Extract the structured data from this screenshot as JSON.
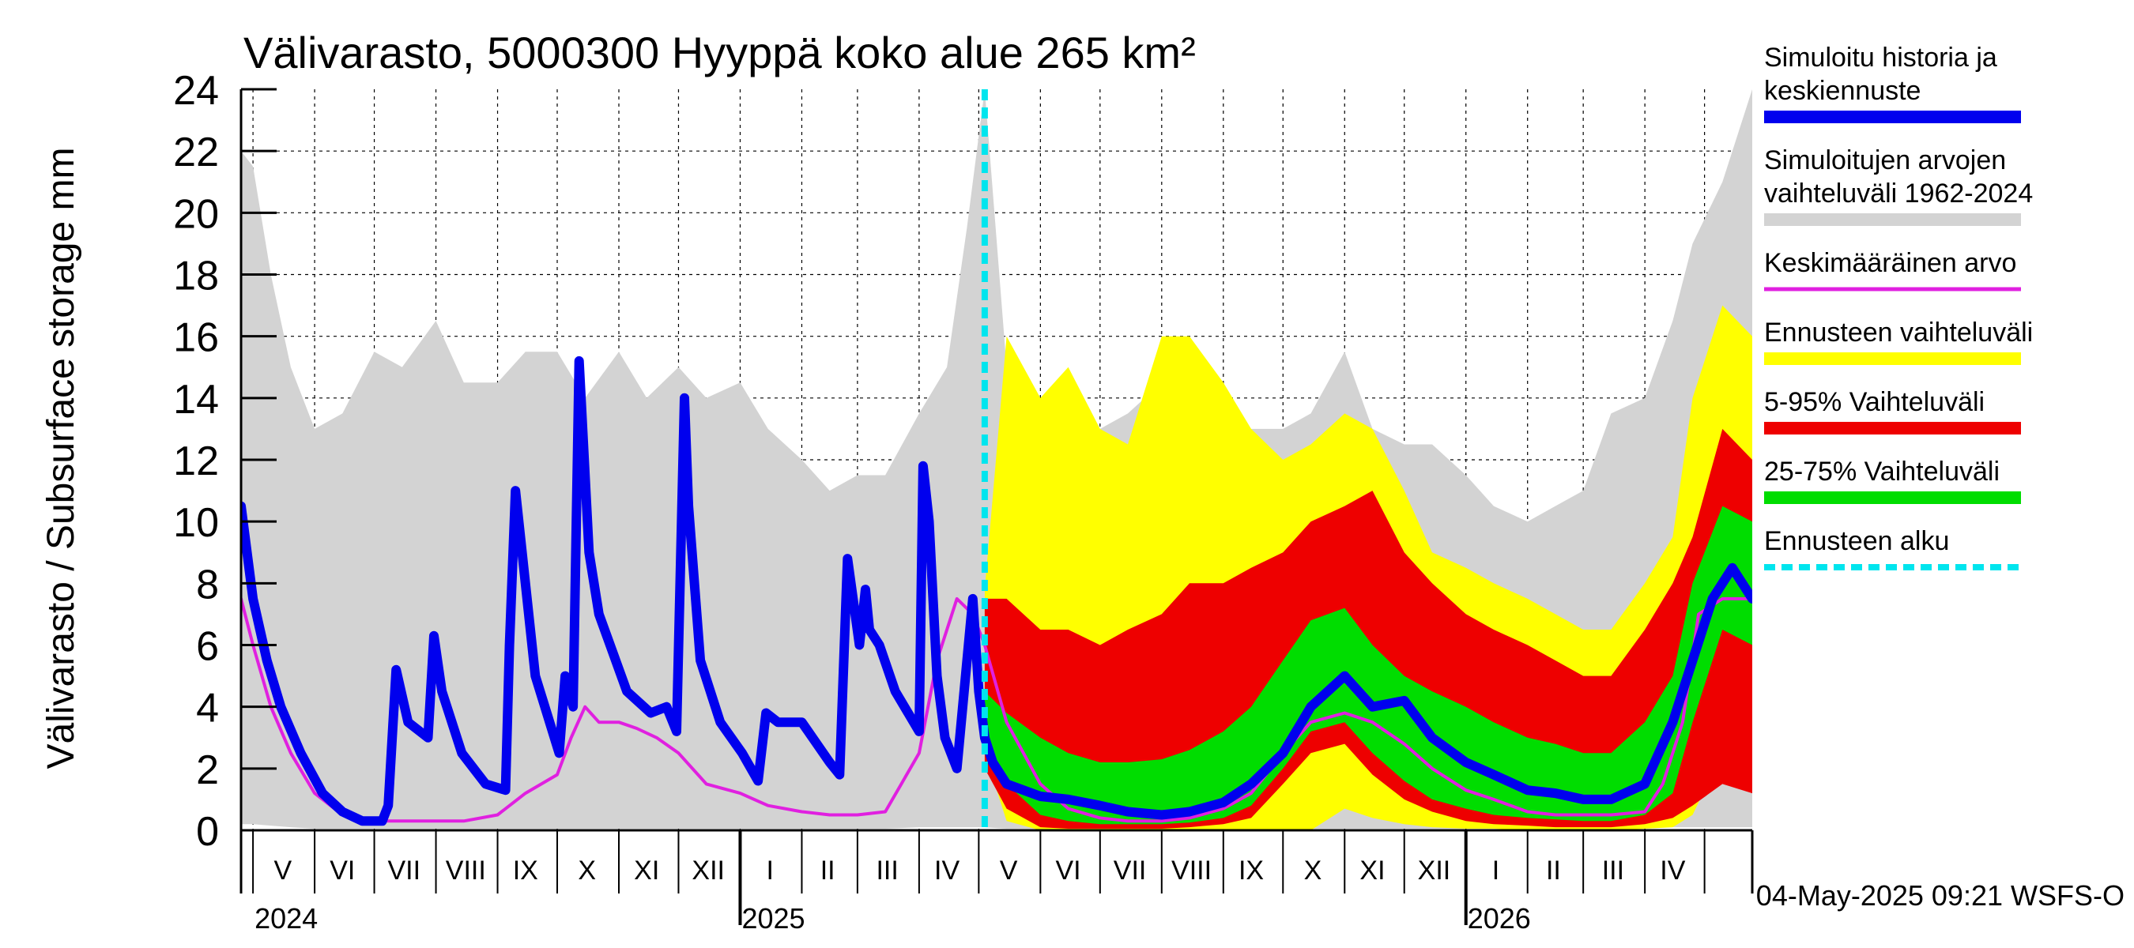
{
  "chart_data": {
    "type": "area",
    "title": "Välivarasto, 5000300 Hyyppä koko alue 265 km²",
    "ylabel": "Välivarasto / Subsurface storage  mm",
    "ylim": [
      0,
      24
    ],
    "yticks": [
      0,
      2,
      4,
      6,
      8,
      10,
      12,
      14,
      16,
      18,
      20,
      22,
      24
    ],
    "xlim": [
      "2024-04-25",
      "2026-05-25"
    ],
    "forecast_start": "2025-05-04",
    "month_labels": [
      {
        "label": "V",
        "center": "2024-05-16"
      },
      {
        "label": "VI",
        "center": "2024-06-15"
      },
      {
        "label": "VII",
        "center": "2024-07-16"
      },
      {
        "label": "VIII",
        "center": "2024-08-16"
      },
      {
        "label": "IX",
        "center": "2024-09-15"
      },
      {
        "label": "X",
        "center": "2024-10-16"
      },
      {
        "label": "XI",
        "center": "2024-11-15"
      },
      {
        "label": "XII",
        "center": "2024-12-16"
      },
      {
        "label": "I",
        "center": "2025-01-16"
      },
      {
        "label": "II",
        "center": "2025-02-14"
      },
      {
        "label": "III",
        "center": "2025-03-16"
      },
      {
        "label": "IV",
        "center": "2025-04-15"
      },
      {
        "label": "V",
        "center": "2025-05-16"
      },
      {
        "label": "VI",
        "center": "2025-06-15"
      },
      {
        "label": "VII",
        "center": "2025-07-16"
      },
      {
        "label": "VIII",
        "center": "2025-08-16"
      },
      {
        "label": "IX",
        "center": "2025-09-15"
      },
      {
        "label": "X",
        "center": "2025-10-16"
      },
      {
        "label": "XI",
        "center": "2025-11-15"
      },
      {
        "label": "XII",
        "center": "2025-12-16"
      },
      {
        "label": "I",
        "center": "2026-01-16"
      },
      {
        "label": "II",
        "center": "2026-02-14"
      },
      {
        "label": "III",
        "center": "2026-03-16"
      },
      {
        "label": "IV",
        "center": "2026-04-15"
      }
    ],
    "year_labels": [
      {
        "label": "2024",
        "at": "2024-05-01"
      },
      {
        "label": "2025",
        "at": "2025-01-01"
      },
      {
        "label": "2026",
        "at": "2026-01-01"
      }
    ],
    "footer": "04-May-2025 09:21 WSFS-O",
    "legend": {
      "placement": "right",
      "entries": [
        {
          "lines": [
            "Simuloitu historia ja",
            "keskiennuste"
          ],
          "color": "#0000ee",
          "dashed": false
        },
        {
          "lines": [
            "Simuloitujen arvojen",
            "vaihteluväli 1962-2024"
          ],
          "color": "#d3d3d3",
          "dashed": false
        },
        {
          "lines": [
            "Keskimääräinen arvo"
          ],
          "color": "#e020e0",
          "dashed": false
        },
        {
          "lines": [
            "Ennusteen vaihteluväli"
          ],
          "color": "#ffff00",
          "dashed": false
        },
        {
          "lines": [
            "5-95% Vaihteluväli"
          ],
          "color": "#ee0000",
          "dashed": false
        },
        {
          "lines": [
            "25-75% Vaihteluväli"
          ],
          "color": "#00dd00",
          "dashed": false
        },
        {
          "lines": [
            "Ennusteen alku"
          ],
          "color": "#00e5ee",
          "dashed": true
        }
      ]
    },
    "colors": {
      "history_range": "#d3d3d3",
      "forecast_range": "#ffff00",
      "p5_95": "#ee0000",
      "p25_75": "#00dd00",
      "median": "#0000ee",
      "mean": "#e020e0",
      "forecast_start": "#00e5ee"
    },
    "series": [
      {
        "name": "Simuloitujen arvojen vaihteluväli 1962-2024",
        "role": "history_range",
        "x": [
          "2024-04-25",
          "2024-05-01",
          "2024-05-10",
          "2024-05-20",
          "2024-06-01",
          "2024-06-15",
          "2024-07-01",
          "2024-07-15",
          "2024-08-01",
          "2024-08-15",
          "2024-09-01",
          "2024-09-15",
          "2024-10-01",
          "2024-10-15",
          "2024-11-01",
          "2024-11-15",
          "2024-12-01",
          "2024-12-15",
          "2025-01-01",
          "2025-01-15",
          "2025-02-01",
          "2025-02-15",
          "2025-03-01",
          "2025-03-15",
          "2025-04-01",
          "2025-04-15",
          "2025-04-25",
          "2025-05-04",
          "2025-05-15",
          "2025-06-01",
          "2025-06-15",
          "2025-07-01",
          "2025-07-15",
          "2025-08-01",
          "2025-08-15",
          "2025-09-01",
          "2025-09-15",
          "2025-10-01",
          "2025-10-15",
          "2025-11-01",
          "2025-11-15",
          "2025-12-01",
          "2025-12-15",
          "2026-01-01",
          "2026-01-15",
          "2026-02-01",
          "2026-02-15",
          "2026-03-01",
          "2026-03-15",
          "2026-04-01",
          "2026-04-15",
          "2026-04-25",
          "2026-05-10",
          "2026-05-25"
        ],
        "upper": [
          22.0,
          21.5,
          18.0,
          15.0,
          13.0,
          13.5,
          15.5,
          15.0,
          16.5,
          14.5,
          14.5,
          15.5,
          15.5,
          14.0,
          15.5,
          14.0,
          15.0,
          14.0,
          14.5,
          13.0,
          12.0,
          11.0,
          11.5,
          11.5,
          13.5,
          15.0,
          19.5,
          24.0,
          15.0,
          13.0,
          13.0,
          13.0,
          13.5,
          14.5,
          14.0,
          13.5,
          13.0,
          13.0,
          13.5,
          15.5,
          13.0,
          12.5,
          12.5,
          11.5,
          10.5,
          10.0,
          10.5,
          11.0,
          13.5,
          14.0,
          16.5,
          19.0,
          21.0,
          24.0
        ],
        "lower": [
          0.2,
          0.2,
          0.15,
          0.1,
          0.05,
          0.05,
          0.05,
          0.05,
          0.05,
          0.05,
          0.05,
          0.05,
          0.05,
          0.05,
          0.05,
          0.05,
          0.05,
          0.05,
          0.05,
          0.05,
          0.05,
          0.05,
          0.05,
          0.05,
          0.1,
          0.1,
          0.1,
          0.1,
          0.05,
          0.05,
          0.05,
          0.05,
          0.05,
          0.05,
          0.05,
          0.05,
          0.05,
          0.05,
          0.05,
          0.05,
          0.05,
          0.05,
          0.05,
          0.05,
          0.05,
          0.05,
          0.05,
          0.05,
          0.05,
          0.05,
          0.1,
          0.1,
          0.1,
          0.1
        ]
      },
      {
        "name": "Ennusteen vaihteluväli",
        "role": "forecast_range",
        "x": [
          "2025-05-04",
          "2025-05-15",
          "2025-06-01",
          "2025-06-15",
          "2025-07-01",
          "2025-07-15",
          "2025-08-01",
          "2025-08-15",
          "2025-09-01",
          "2025-09-15",
          "2025-10-01",
          "2025-10-15",
          "2025-11-01",
          "2025-11-15",
          "2025-12-01",
          "2025-12-15",
          "2026-01-01",
          "2026-01-15",
          "2026-02-01",
          "2026-02-15",
          "2026-03-01",
          "2026-03-15",
          "2026-04-01",
          "2026-04-15",
          "2026-04-25",
          "2026-05-10",
          "2026-05-25"
        ],
        "upper": [
          7.8,
          16.0,
          14.0,
          15.0,
          13.0,
          12.5,
          16.0,
          16.0,
          14.5,
          13.0,
          12.0,
          12.5,
          13.5,
          13.0,
          11.0,
          9.0,
          8.5,
          8.0,
          7.5,
          7.0,
          6.5,
          6.5,
          8.0,
          9.5,
          14.0,
          17.0,
          16.0
        ],
        "lower": [
          2.5,
          0.3,
          0.0,
          0.0,
          0.0,
          0.0,
          0.0,
          0.0,
          0.0,
          0.0,
          0.0,
          0.0,
          0.7,
          0.4,
          0.2,
          0.1,
          0.05,
          0.05,
          0.0,
          0.0,
          0.0,
          0.0,
          0.05,
          0.1,
          0.5,
          2.5,
          2.0
        ]
      },
      {
        "name": "5-95% Vaihteluväli",
        "role": "p5_95",
        "x": [
          "2025-05-04",
          "2025-05-15",
          "2025-06-01",
          "2025-06-15",
          "2025-07-01",
          "2025-07-15",
          "2025-08-01",
          "2025-08-15",
          "2025-09-01",
          "2025-09-15",
          "2025-10-01",
          "2025-10-15",
          "2025-11-01",
          "2025-11-15",
          "2025-12-01",
          "2025-12-15",
          "2026-01-01",
          "2026-01-15",
          "2026-02-01",
          "2026-02-15",
          "2026-03-01",
          "2026-03-15",
          "2026-04-01",
          "2026-04-15",
          "2026-04-25",
          "2026-05-10",
          "2026-05-25"
        ],
        "upper": [
          7.5,
          7.5,
          6.5,
          6.5,
          6.0,
          6.5,
          7.0,
          8.0,
          8.0,
          8.5,
          9.0,
          10.0,
          10.5,
          11.0,
          9.0,
          8.0,
          7.0,
          6.5,
          6.0,
          5.5,
          5.0,
          5.0,
          6.5,
          8.0,
          9.5,
          13.0,
          12.0
        ],
        "lower": [
          2.0,
          0.7,
          0.1,
          0.05,
          0.05,
          0.05,
          0.05,
          0.1,
          0.2,
          0.4,
          1.5,
          2.5,
          2.8,
          1.8,
          1.0,
          0.6,
          0.3,
          0.2,
          0.15,
          0.1,
          0.1,
          0.1,
          0.2,
          0.4,
          0.8,
          1.5,
          1.2
        ]
      },
      {
        "name": "25-75% Vaihteluväli",
        "role": "p25_75",
        "x": [
          "2025-05-04",
          "2025-05-15",
          "2025-06-01",
          "2025-06-15",
          "2025-07-01",
          "2025-07-15",
          "2025-08-01",
          "2025-08-15",
          "2025-09-01",
          "2025-09-15",
          "2025-10-01",
          "2025-10-15",
          "2025-11-01",
          "2025-11-15",
          "2025-12-01",
          "2025-12-15",
          "2026-01-01",
          "2026-01-15",
          "2026-02-01",
          "2026-02-15",
          "2026-03-01",
          "2026-03-15",
          "2026-04-01",
          "2026-04-15",
          "2026-04-25",
          "2026-05-10",
          "2026-05-25"
        ],
        "upper": [
          4.5,
          3.8,
          3.0,
          2.5,
          2.2,
          2.2,
          2.3,
          2.6,
          3.2,
          4.0,
          5.5,
          6.8,
          7.2,
          6.0,
          5.0,
          4.5,
          4.0,
          3.5,
          3.0,
          2.8,
          2.5,
          2.5,
          3.5,
          5.0,
          8.0,
          10.5,
          10.0
        ],
        "lower": [
          2.5,
          1.5,
          0.5,
          0.3,
          0.2,
          0.2,
          0.2,
          0.25,
          0.4,
          0.8,
          2.0,
          3.2,
          3.5,
          2.5,
          1.6,
          1.0,
          0.7,
          0.5,
          0.4,
          0.35,
          0.3,
          0.3,
          0.5,
          1.2,
          3.5,
          6.5,
          6.0
        ]
      },
      {
        "name": "Simuloitu historia ja keskiennuste",
        "role": "median",
        "x": [
          "2024-04-25",
          "2024-05-01",
          "2024-05-08",
          "2024-05-15",
          "2024-05-25",
          "2024-06-05",
          "2024-06-15",
          "2024-06-25",
          "2024-07-05",
          "2024-07-08",
          "2024-07-12",
          "2024-07-18",
          "2024-07-28",
          "2024-07-31",
          "2024-08-04",
          "2024-08-14",
          "2024-08-26",
          "2024-09-05",
          "2024-09-07",
          "2024-09-10",
          "2024-09-20",
          "2024-10-02",
          "2024-10-05",
          "2024-10-09",
          "2024-10-12",
          "2024-10-17",
          "2024-10-22",
          "2024-11-05",
          "2024-11-17",
          "2024-11-25",
          "2024-11-30",
          "2024-12-04",
          "2024-12-06",
          "2024-12-12",
          "2024-12-22",
          "2025-01-02",
          "2025-01-10",
          "2025-01-14",
          "2025-01-20",
          "2025-02-01",
          "2025-02-15",
          "2025-02-20",
          "2025-02-24",
          "2025-03-02",
          "2025-03-05",
          "2025-03-07",
          "2025-03-12",
          "2025-03-20",
          "2025-04-01",
          "2025-04-03",
          "2025-04-06",
          "2025-04-10",
          "2025-04-14",
          "2025-04-20",
          "2025-04-28",
          "2025-05-01",
          "2025-05-04",
          "2025-05-08",
          "2025-05-15",
          "2025-06-01",
          "2025-06-15",
          "2025-07-01",
          "2025-07-15",
          "2025-08-01",
          "2025-08-15",
          "2025-09-01",
          "2025-09-15",
          "2025-10-01",
          "2025-10-15",
          "2025-11-01",
          "2025-11-15",
          "2025-12-01",
          "2025-12-15",
          "2026-01-01",
          "2026-01-15",
          "2026-02-01",
          "2026-02-15",
          "2026-03-01",
          "2026-03-15",
          "2026-04-01",
          "2026-04-15",
          "2026-04-25",
          "2026-05-05",
          "2026-05-15",
          "2026-05-25"
        ],
        "values": [
          10.5,
          7.5,
          5.5,
          4.0,
          2.5,
          1.2,
          0.6,
          0.3,
          0.3,
          0.8,
          5.2,
          3.5,
          3.0,
          6.3,
          4.5,
          2.5,
          1.5,
          1.3,
          6.0,
          11.0,
          5.0,
          2.5,
          5.0,
          4.0,
          15.2,
          9.0,
          7.0,
          4.5,
          3.8,
          4.0,
          3.2,
          14.0,
          10.5,
          5.5,
          3.5,
          2.5,
          1.6,
          3.8,
          3.5,
          3.5,
          2.2,
          1.8,
          8.8,
          6.0,
          7.8,
          6.5,
          6.0,
          4.5,
          3.2,
          11.8,
          10.0,
          5.0,
          3.0,
          2.0,
          7.5,
          4.5,
          3.0,
          2.2,
          1.5,
          1.1,
          1.0,
          0.8,
          0.6,
          0.5,
          0.6,
          0.9,
          1.5,
          2.5,
          4.0,
          5.0,
          4.0,
          4.2,
          3.0,
          2.2,
          1.8,
          1.3,
          1.2,
          1.0,
          1.0,
          1.5,
          3.5,
          5.5,
          7.5,
          8.5,
          7.5
        ]
      },
      {
        "name": "Keskimääräinen arvo",
        "role": "mean",
        "x": [
          "2024-04-25",
          "2024-05-01",
          "2024-05-10",
          "2024-05-20",
          "2024-06-01",
          "2024-06-15",
          "2024-07-01",
          "2024-07-15",
          "2024-08-01",
          "2024-08-15",
          "2024-09-01",
          "2024-09-15",
          "2024-10-01",
          "2024-10-08",
          "2024-10-15",
          "2024-10-22",
          "2024-11-01",
          "2024-11-10",
          "2024-11-20",
          "2024-12-01",
          "2024-12-15",
          "2025-01-01",
          "2025-01-15",
          "2025-02-01",
          "2025-02-15",
          "2025-03-01",
          "2025-03-15",
          "2025-04-01",
          "2025-04-10",
          "2025-04-20",
          "2025-04-28",
          "2025-05-04",
          "2025-05-15",
          "2025-06-01",
          "2025-06-15",
          "2025-07-01",
          "2025-07-15",
          "2025-08-01",
          "2025-08-15",
          "2025-09-01",
          "2025-09-15",
          "2025-10-01",
          "2025-10-15",
          "2025-11-01",
          "2025-11-15",
          "2025-12-01",
          "2025-12-15",
          "2026-01-01",
          "2026-01-15",
          "2026-02-01",
          "2026-02-15",
          "2026-03-01",
          "2026-03-15",
          "2026-04-01",
          "2026-04-10",
          "2026-04-20",
          "2026-04-28",
          "2026-05-10",
          "2026-05-25"
        ],
        "values": [
          7.5,
          6.0,
          4.0,
          2.5,
          1.2,
          0.5,
          0.3,
          0.3,
          0.3,
          0.3,
          0.5,
          1.2,
          1.8,
          3.0,
          4.0,
          3.5,
          3.5,
          3.3,
          3.0,
          2.5,
          1.5,
          1.2,
          0.8,
          0.6,
          0.5,
          0.5,
          0.6,
          2.5,
          5.5,
          7.5,
          7.0,
          6.0,
          3.5,
          1.5,
          0.7,
          0.4,
          0.3,
          0.3,
          0.4,
          0.7,
          1.2,
          2.5,
          3.5,
          3.8,
          3.5,
          2.8,
          2.0,
          1.3,
          1.0,
          0.6,
          0.5,
          0.5,
          0.5,
          0.6,
          1.5,
          3.5,
          7.0,
          7.5,
          7.5
        ]
      }
    ]
  }
}
